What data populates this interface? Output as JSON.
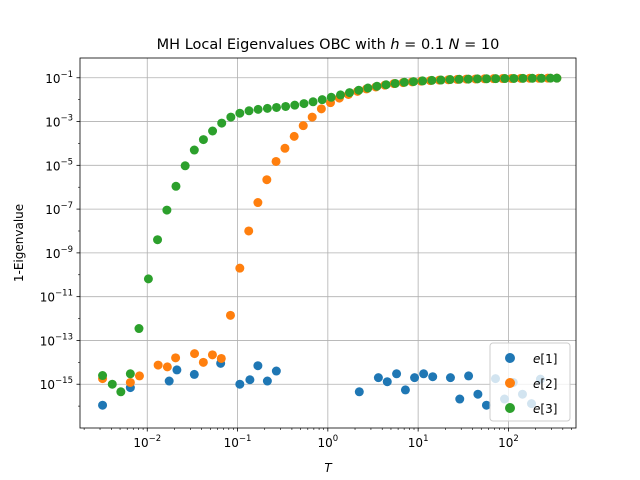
{
  "chart_data": {
    "type": "scatter",
    "title_parts": {
      "prefix": "MH Local Eigenvalues OBC  with ",
      "h_sym": "h",
      "h_eq": " = 0.1 ",
      "n_sym": "N",
      "n_eq": " =  10"
    },
    "xlabel": "T",
    "ylabel": "1-Eigenvalue",
    "xscale": "log",
    "yscale": "log",
    "xlim": [
      0.0018,
      560
    ],
    "ylim": [
      1e-17,
      0.8
    ],
    "xticks": [
      {
        "value": 0.01,
        "base": "10",
        "exp": "−2"
      },
      {
        "value": 0.1,
        "base": "10",
        "exp": "−1"
      },
      {
        "value": 1,
        "base": "10",
        "exp": "0"
      },
      {
        "value": 10,
        "base": "10",
        "exp": "1"
      },
      {
        "value": 100,
        "base": "10",
        "exp": "2"
      }
    ],
    "yticks": [
      {
        "value": 1e-15,
        "base": "10",
        "exp": "−15"
      },
      {
        "value": 1e-13,
        "base": "10",
        "exp": "−13"
      },
      {
        "value": 1e-11,
        "base": "10",
        "exp": "−11"
      },
      {
        "value": 1e-09,
        "base": "10",
        "exp": "−9"
      },
      {
        "value": 1e-07,
        "base": "10",
        "exp": "−7"
      },
      {
        "value": 1e-05,
        "base": "10",
        "exp": "−5"
      },
      {
        "value": 0.001,
        "base": "10",
        "exp": "−3"
      },
      {
        "value": 0.1,
        "base": "10",
        "exp": "−1"
      }
    ],
    "grid": true,
    "legend_position": "lower-right",
    "series": [
      {
        "name": "e[1]",
        "color": "#1f77b4",
        "points": [
          [
            0.0032,
            1.1e-16
          ],
          [
            0.0065,
            7e-16
          ],
          [
            0.0175,
            1.4e-15
          ],
          [
            0.0213,
            4.5e-15
          ],
          [
            0.0332,
            2.8e-15
          ],
          [
            0.065,
            9e-15
          ],
          [
            0.106,
            1e-15
          ],
          [
            0.137,
            1.6e-15
          ],
          [
            0.168,
            7e-15
          ],
          [
            0.214,
            1.4e-15
          ],
          [
            0.269,
            4e-15
          ],
          [
            2.23,
            4.5e-16
          ],
          [
            3.63,
            2e-15
          ],
          [
            4.55,
            1.3e-15
          ],
          [
            5.77,
            3e-15
          ],
          [
            7.23,
            5.5e-16
          ],
          [
            9.13,
            2e-15
          ],
          [
            11.5,
            3e-15
          ],
          [
            14.5,
            2.2e-15
          ],
          [
            22.8,
            2e-15
          ],
          [
            28.9,
            2.1e-16
          ],
          [
            36.2,
            2.4e-15
          ],
          [
            45.9,
            3.5e-16
          ],
          [
            57.1,
            1.1e-16
          ],
          [
            71.9,
            1.8e-15
          ],
          [
            90.5,
            2.1e-16
          ],
          [
            113,
            1.2e-15
          ],
          [
            143,
            3.5e-16
          ],
          [
            180,
            1.3e-16
          ],
          [
            226,
            1.7e-15
          ]
        ]
      },
      {
        "name": "e[2]",
        "color": "#ff7f0e",
        "points": [
          [
            0.0032,
            1.8e-15
          ],
          [
            0.0065,
            1.2e-15
          ],
          [
            0.0082,
            2.4e-15
          ],
          [
            0.0132,
            7.5e-15
          ],
          [
            0.0167,
            6.2e-15
          ],
          [
            0.0206,
            1.6e-14
          ],
          [
            0.0334,
            2.5e-14
          ],
          [
            0.0418,
            1e-14
          ],
          [
            0.0527,
            2.2e-14
          ],
          [
            0.0661,
            1.5e-14
          ],
          [
            0.0835,
            1.4e-12
          ],
          [
            0.106,
            2e-10
          ],
          [
            0.133,
            1e-08
          ],
          [
            0.168,
            2e-07
          ],
          [
            0.211,
            2.2e-06
          ],
          [
            0.267,
            1.5e-05
          ],
          [
            0.335,
            6e-05
          ],
          [
            0.424,
            0.00021
          ],
          [
            0.534,
            0.00065
          ],
          [
            0.671,
            0.0016
          ],
          [
            0.848,
            0.0038
          ],
          [
            1.07,
            0.0073
          ],
          [
            1.34,
            0.0118
          ],
          [
            1.69,
            0.0172
          ],
          [
            2.13,
            0.024
          ],
          [
            2.68,
            0.031
          ],
          [
            3.4,
            0.038
          ],
          [
            4.28,
            0.046
          ],
          [
            5.38,
            0.054
          ],
          [
            6.8,
            0.06
          ],
          [
            8.57,
            0.065
          ],
          [
            10.8,
            0.07
          ],
          [
            13.6,
            0.074
          ],
          [
            17.1,
            0.078
          ],
          [
            21.6,
            0.081
          ],
          [
            27.1,
            0.084
          ],
          [
            34.2,
            0.087
          ],
          [
            43.2,
            0.088
          ],
          [
            54.4,
            0.09
          ],
          [
            68.5,
            0.091
          ],
          [
            86.3,
            0.092
          ],
          [
            108,
            0.093
          ],
          [
            137,
            0.094
          ],
          [
            172,
            0.095
          ],
          [
            217,
            0.095
          ],
          [
            273,
            0.096
          ],
          [
            344,
            0.096
          ]
        ]
      },
      {
        "name": "e[3]",
        "color": "#2ca02c",
        "points": [
          [
            0.0032,
            2.5e-15
          ],
          [
            0.0041,
            1e-15
          ],
          [
            0.0051,
            4.5e-16
          ],
          [
            0.0065,
            3e-15
          ],
          [
            0.0081,
            3.5e-13
          ],
          [
            0.0103,
            6.5e-11
          ],
          [
            0.013,
            4e-09
          ],
          [
            0.0165,
            9e-08
          ],
          [
            0.0208,
            1.1e-06
          ],
          [
            0.0263,
            9.5e-06
          ],
          [
            0.0332,
            5e-05
          ],
          [
            0.0419,
            0.00015
          ],
          [
            0.0529,
            0.00037
          ],
          [
            0.0668,
            0.00085
          ],
          [
            0.0843,
            0.0016
          ],
          [
            0.106,
            0.0024
          ],
          [
            0.134,
            0.0031
          ],
          [
            0.169,
            0.0036
          ],
          [
            0.214,
            0.004
          ],
          [
            0.27,
            0.0044
          ],
          [
            0.341,
            0.0049
          ],
          [
            0.43,
            0.0056
          ],
          [
            0.544,
            0.0066
          ],
          [
            0.686,
            0.008
          ],
          [
            0.866,
            0.01
          ],
          [
            1.09,
            0.0128
          ],
          [
            1.38,
            0.0165
          ],
          [
            1.74,
            0.021
          ],
          [
            2.2,
            0.027
          ],
          [
            2.78,
            0.034
          ],
          [
            3.5,
            0.041
          ],
          [
            4.42,
            0.048
          ],
          [
            5.58,
            0.055
          ],
          [
            7.04,
            0.062
          ],
          [
            8.89,
            0.067
          ],
          [
            11.2,
            0.072
          ],
          [
            14.2,
            0.076
          ],
          [
            17.9,
            0.079
          ],
          [
            22.6,
            0.083
          ],
          [
            28.5,
            0.085
          ],
          [
            36,
            0.087
          ],
          [
            45.4,
            0.089
          ],
          [
            57.3,
            0.09
          ],
          [
            72.3,
            0.091
          ],
          [
            91.3,
            0.092
          ],
          [
            115,
            0.093
          ],
          [
            145,
            0.094
          ],
          [
            184,
            0.095
          ],
          [
            232,
            0.095
          ],
          [
            292,
            0.096
          ],
          [
            344,
            0.096
          ]
        ]
      }
    ]
  }
}
